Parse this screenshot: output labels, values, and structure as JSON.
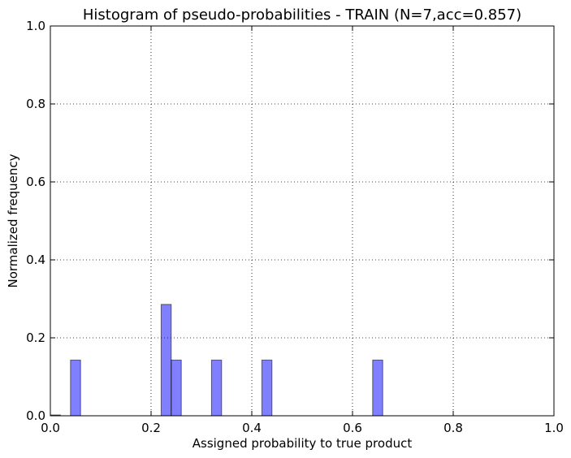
{
  "chart_data": {
    "type": "bar",
    "title": "Histogram of pseudo-probabilities - TRAIN (N=7,acc=0.857)",
    "xlabel": "Assigned probability to true product",
    "ylabel": "Normalized frequency",
    "xlim": [
      0,
      1.0
    ],
    "ylim": [
      0,
      1.0
    ],
    "xticks": [
      "0.0",
      "0.2",
      "0.4",
      "0.6",
      "0.8",
      "1.0"
    ],
    "yticks": [
      "0.0",
      "0.2",
      "0.4",
      "0.6",
      "0.8",
      "1.0"
    ],
    "grid": true,
    "bar_color": "#0000ff",
    "bar_opacity": 0.5,
    "bins": [
      {
        "x0": 0.0,
        "x1": 0.02,
        "value": 0.0
      },
      {
        "x0": 0.04,
        "x1": 0.06,
        "value": 0.1429
      },
      {
        "x0": 0.22,
        "x1": 0.24,
        "value": 0.2857
      },
      {
        "x0": 0.24,
        "x1": 0.26,
        "value": 0.1429
      },
      {
        "x0": 0.32,
        "x1": 0.34,
        "value": 0.1429
      },
      {
        "x0": 0.42,
        "x1": 0.44,
        "value": 0.1429
      },
      {
        "x0": 0.64,
        "x1": 0.66,
        "value": 0.1429
      }
    ]
  }
}
